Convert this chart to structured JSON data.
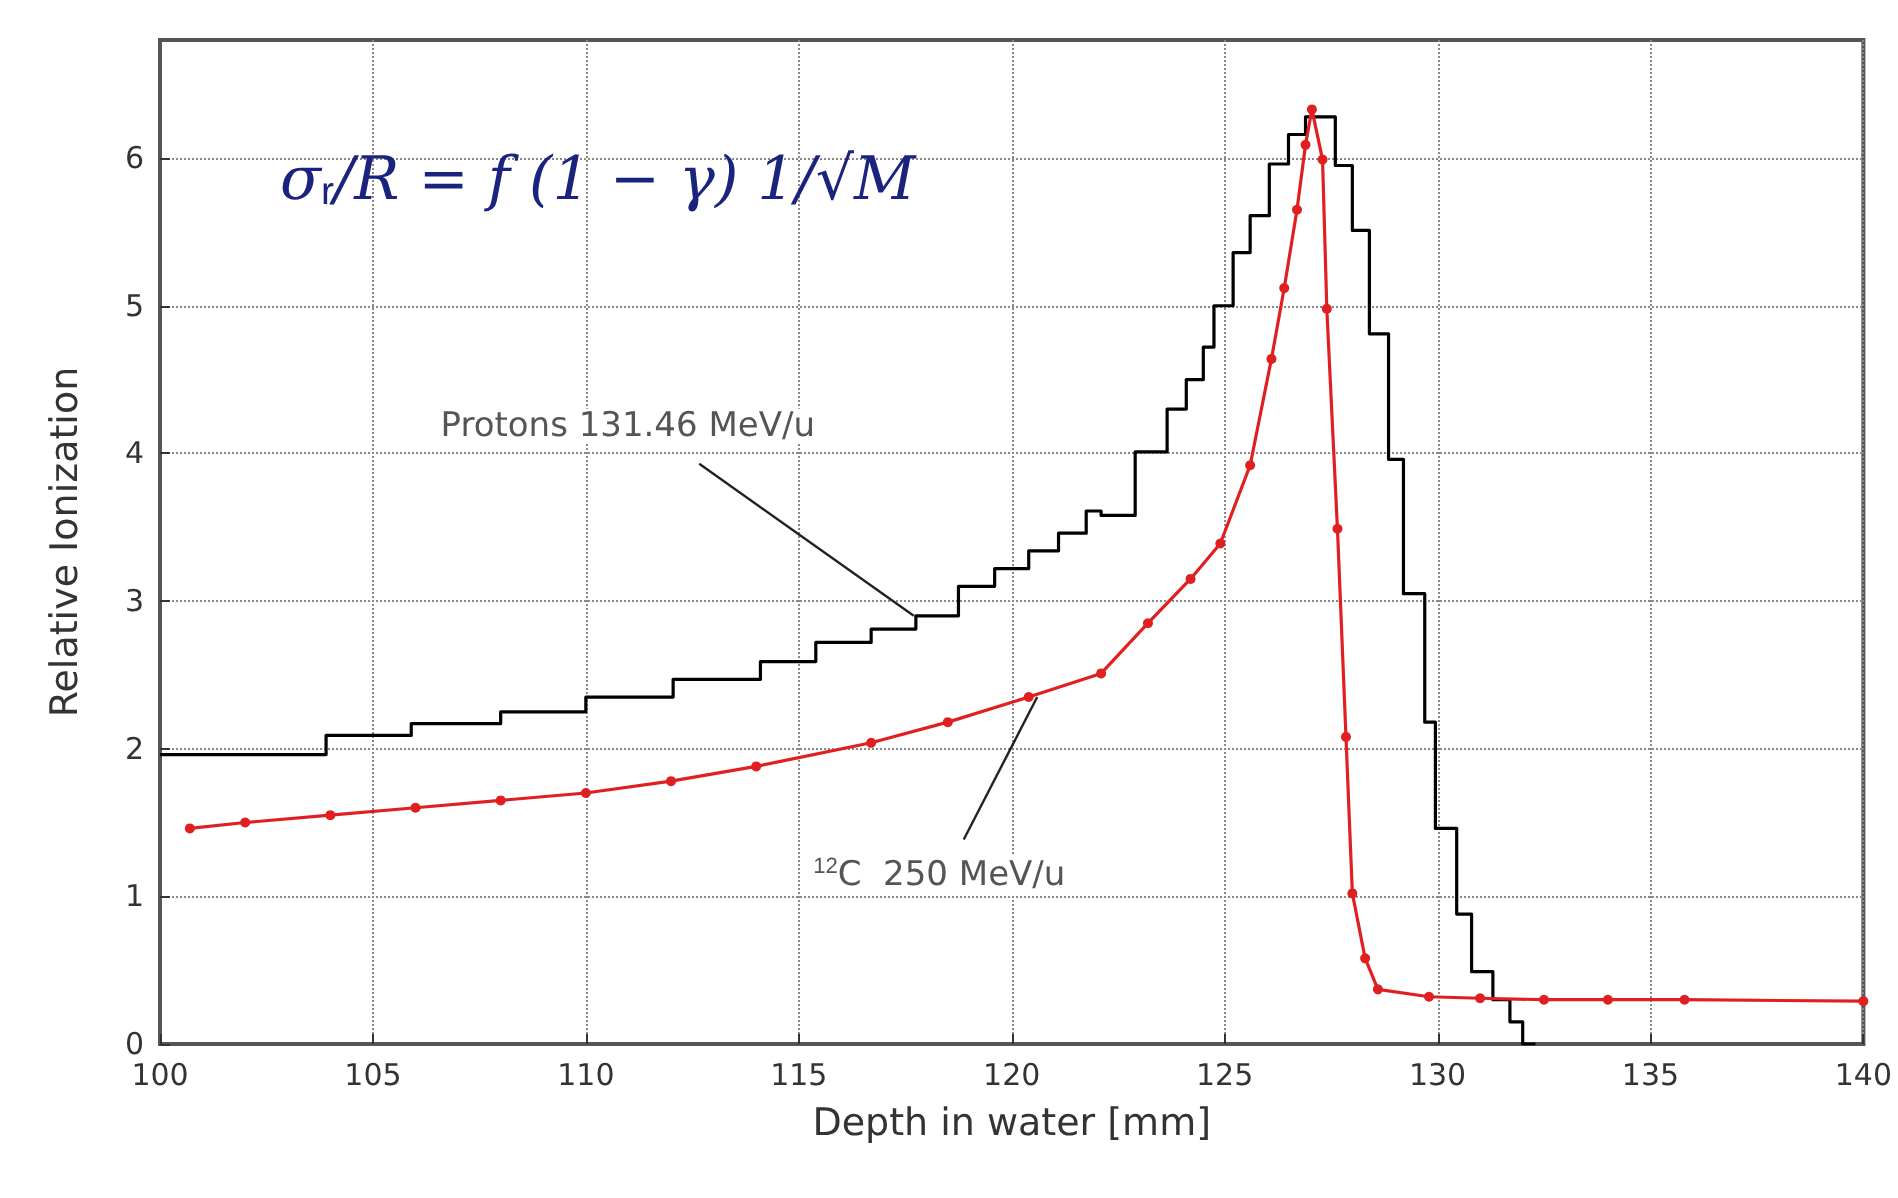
{
  "chart_data": {
    "type": "line",
    "xlabel": "Depth in water [mm]",
    "ylabel": "Relative Ionization",
    "xlim": [
      100,
      140
    ],
    "xticks": [
      100,
      105,
      110,
      115,
      120,
      125,
      130,
      135,
      140
    ],
    "ylim": [
      0,
      6.8
    ],
    "yticks": [
      0,
      1,
      2,
      3,
      4,
      5,
      6
    ],
    "grid": true,
    "series": [
      {
        "type": "step",
        "color": "#000000",
        "x": [
          100,
          103.9,
          105.9,
          108.0,
          110.0,
          112.05,
          114.1,
          115.4,
          116.7,
          117.75,
          118.75,
          119.6,
          120.4,
          121.1,
          121.75,
          122.1,
          122.9,
          123.65,
          124.1,
          124.5,
          124.75,
          125.2,
          125.6,
          126.05,
          126.5,
          126.9,
          127.6,
          128.0,
          128.4,
          128.85,
          129.2,
          129.7,
          129.95,
          130.45,
          130.8,
          131.3,
          131.7,
          132.0,
          132.3
        ],
        "values": [
          1.96,
          2.09,
          2.17,
          2.25,
          2.35,
          2.47,
          2.59,
          2.72,
          2.81,
          2.9,
          3.1,
          3.22,
          3.34,
          3.46,
          3.61,
          3.58,
          4.01,
          4.3,
          4.5,
          4.72,
          5.0,
          5.36,
          5.61,
          5.96,
          6.16,
          6.28,
          5.95,
          5.51,
          4.81,
          3.96,
          3.05,
          2.18,
          1.46,
          0.88,
          0.49,
          0.3,
          0.15,
          0.0,
          0.0
        ]
      },
      {
        "color": "#e02020",
        "marker": "circle",
        "x": [
          100.7,
          102,
          104,
          106,
          108,
          110,
          112,
          114,
          116.7,
          118.5,
          120.4,
          122.1,
          123.2,
          124.2,
          124.9,
          125.6,
          126.1,
          126.4,
          126.7,
          126.9,
          127.05,
          127.3,
          127.4,
          127.65,
          127.85,
          128.0,
          128.3,
          128.6,
          129.8,
          131,
          132.5,
          134,
          135.8,
          140
        ],
        "values": [
          1.46,
          1.5,
          1.55,
          1.6,
          1.65,
          1.7,
          1.78,
          1.88,
          2.04,
          2.18,
          2.35,
          2.51,
          2.85,
          3.15,
          3.39,
          3.92,
          4.64,
          5.12,
          5.65,
          6.09,
          6.33,
          5.99,
          4.98,
          3.49,
          2.08,
          1.02,
          0.58,
          0.37,
          0.32,
          0.31,
          0.3,
          0.3,
          0.3,
          0.29
        ]
      }
    ],
    "annotations": [
      "σ$_{r}$/R = f (1 − γ) 1/√M",
      {
        "text": "Protons 131.46 MeV/u",
        "x": 117.7,
        "y": 2.9
      },
      {
        "text": "$^{12}$C  250 MeV/u",
        "x": 120.6,
        "y": 2.35
      }
    ]
  }
}
